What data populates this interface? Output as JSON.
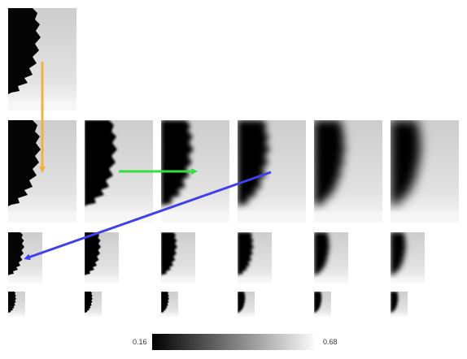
{
  "colorbar": {
    "min_label": "0.16",
    "max_label": "0.68",
    "gradient": [
      "#000000",
      "#f8f8f8"
    ]
  },
  "grid": {
    "rows": [
      {
        "name": "level-0",
        "tiles": [
          {
            "blur": 0
          }
        ]
      },
      {
        "name": "level-1",
        "tiles": [
          {
            "blur": 0
          },
          {
            "blur": 1
          },
          {
            "blur": 2
          },
          {
            "blur": 3
          },
          {
            "blur": 4
          },
          {
            "blur": 5
          }
        ]
      },
      {
        "name": "level-2",
        "tiles": [
          {
            "blur": 0
          },
          {
            "blur": 1
          },
          {
            "blur": 2
          },
          {
            "blur": 3
          },
          {
            "blur": 4
          },
          {
            "blur": 5
          }
        ]
      },
      {
        "name": "level-3",
        "tiles": [
          {
            "blur": 0
          },
          {
            "blur": 1
          },
          {
            "blur": 2
          },
          {
            "blur": 3
          },
          {
            "blur": 4
          },
          {
            "blur": 5
          }
        ]
      }
    ]
  },
  "arrows": [
    {
      "name": "orange-arrow",
      "color": "#f4b13f",
      "direction": "down"
    },
    {
      "name": "green-arrow",
      "color": "#36e03c",
      "direction": "right"
    },
    {
      "name": "blue-arrow",
      "color": "#3f40ea",
      "direction": "down-left"
    }
  ]
}
